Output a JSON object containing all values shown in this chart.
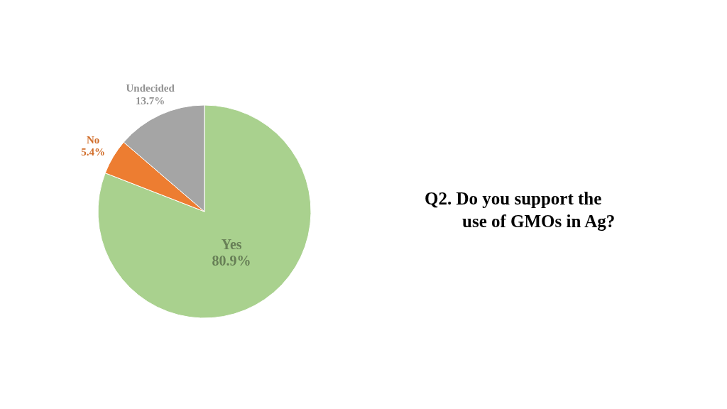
{
  "chart_data": {
    "type": "pie",
    "title": "Q2. Do you support the use of GMOs in Ag?",
    "categories": [
      "Yes",
      "No",
      "Undecided"
    ],
    "values": [
      80.9,
      5.4,
      13.7
    ],
    "colors": [
      "#a9d18e",
      "#ed7d31",
      "#a5a5a5"
    ],
    "value_labels": [
      "80.9%",
      "5.4%",
      "13.7%"
    ]
  }
}
